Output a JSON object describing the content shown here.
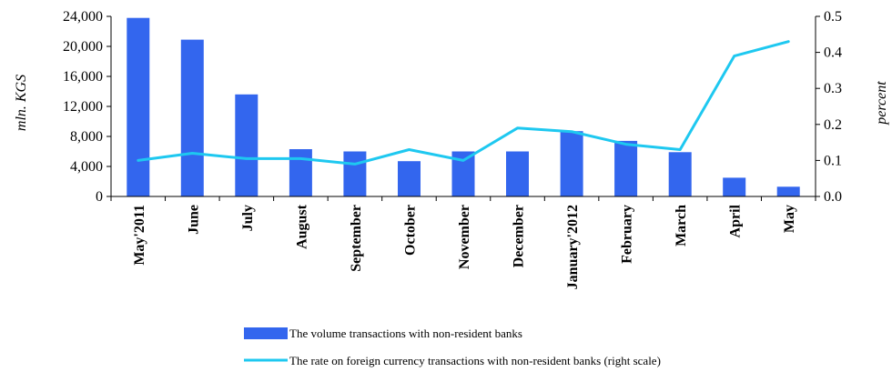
{
  "chart_data": {
    "type": "bar+line",
    "categories": [
      "May'2011",
      "June",
      "July",
      "August",
      "September",
      "October",
      "November",
      "December",
      "January'2012",
      "February",
      "March",
      "April",
      "May"
    ],
    "series": [
      {
        "name": "The volume transactions with non-resident banks",
        "type": "bar",
        "axis": "left",
        "color": "#3366ee",
        "values": [
          23800,
          20900,
          13600,
          6300,
          6000,
          4700,
          6000,
          6000,
          8700,
          7400,
          5900,
          2500,
          1300
        ]
      },
      {
        "name": "The rate on foreign currency transactions with non-resident banks (right scale)",
        "type": "line",
        "axis": "right",
        "color": "#1ec8f0",
        "values": [
          0.1,
          0.12,
          0.105,
          0.105,
          0.09,
          0.13,
          0.1,
          0.19,
          0.18,
          0.145,
          0.13,
          0.39,
          0.43
        ]
      }
    ],
    "y_left": {
      "label": "mln. KGS",
      "ylim": [
        0,
        24000
      ],
      "ticks": [
        "0",
        "4,000",
        "8,000",
        "12,000",
        "16,000",
        "20,000",
        "24,000"
      ],
      "tick_values": [
        0,
        4000,
        8000,
        12000,
        16000,
        20000,
        24000
      ]
    },
    "y_right": {
      "label": "percent",
      "ylim": [
        0,
        0.5
      ],
      "ticks": [
        "0.0",
        "0.1",
        "0.2",
        "0.3",
        "0.4",
        "0.5"
      ],
      "tick_values": [
        0,
        0.1,
        0.2,
        0.3,
        0.4,
        0.5
      ]
    },
    "grid": false,
    "legend_position": "bottom"
  }
}
